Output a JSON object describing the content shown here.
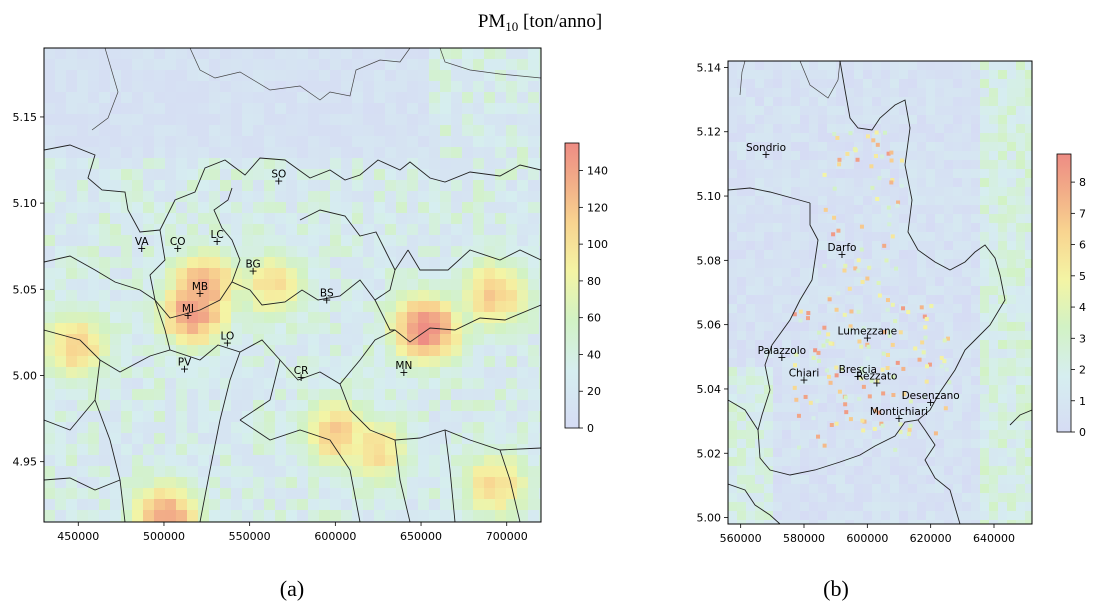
{
  "figure_title": "PM",
  "figure_title_sub": "10",
  "figure_title_unit": " [ton/anno]",
  "chart_data": [
    {
      "type": "heatmap",
      "panel": "a",
      "caption": "(a)",
      "xlim": [
        430000,
        720000
      ],
      "ylim": [
        4.915,
        5.19
      ],
      "x_ticks": [
        450000,
        500000,
        550000,
        600000,
        650000,
        700000
      ],
      "x_tick_labels": [
        "450000",
        "500000",
        "550000",
        "600000",
        "650000",
        "700000"
      ],
      "y_ticks": [
        4.95,
        5.0,
        5.05,
        5.1,
        5.15
      ],
      "y_tick_labels": [
        "4.95",
        "5.00",
        "5.05",
        "5.10",
        "5.15"
      ],
      "colorbar": {
        "min": 0,
        "max": 155,
        "ticks": [
          0,
          20,
          40,
          60,
          80,
          100,
          120,
          140
        ],
        "tick_labels": [
          "0",
          "20",
          "40",
          "60",
          "80",
          "100",
          "120",
          "140"
        ]
      },
      "cities": [
        {
          "label": "SO",
          "x": 567000,
          "y": 5.113
        },
        {
          "label": "VA",
          "x": 487000,
          "y": 5.074
        },
        {
          "label": "CO",
          "x": 508000,
          "y": 5.074
        },
        {
          "label": "LC",
          "x": 531000,
          "y": 5.078
        },
        {
          "label": "BG",
          "x": 552000,
          "y": 5.061
        },
        {
          "label": "MB",
          "x": 521000,
          "y": 5.048
        },
        {
          "label": "BS",
          "x": 595000,
          "y": 5.044
        },
        {
          "label": "MI",
          "x": 514000,
          "y": 5.035
        },
        {
          "label": "LO",
          "x": 537000,
          "y": 5.019
        },
        {
          "label": "PV",
          "x": 512000,
          "y": 5.004
        },
        {
          "label": "CR",
          "x": 580000,
          "y": 4.999
        },
        {
          "label": "MN",
          "x": 640000,
          "y": 5.002
        }
      ],
      "hotspots": [
        {
          "x": 514000,
          "y": 5.04,
          "value": 140
        },
        {
          "x": 520000,
          "y": 5.055,
          "value": 130
        },
        {
          "x": 650000,
          "y": 5.03,
          "value": 150
        },
        {
          "x": 690000,
          "y": 5.05,
          "value": 110
        },
        {
          "x": 498000,
          "y": 4.92,
          "value": 135
        },
        {
          "x": 598000,
          "y": 4.97,
          "value": 110
        },
        {
          "x": 620000,
          "y": 4.96,
          "value": 100
        },
        {
          "x": 690000,
          "y": 4.94,
          "value": 100
        },
        {
          "x": 445000,
          "y": 5.02,
          "value": 105
        },
        {
          "x": 560000,
          "y": 5.055,
          "value": 95
        }
      ]
    },
    {
      "type": "heatmap",
      "panel": "b",
      "caption": "(b)",
      "xlim": [
        556000,
        652000
      ],
      "ylim": [
        4.998,
        5.142
      ],
      "x_ticks": [
        560000,
        580000,
        600000,
        620000,
        640000
      ],
      "x_tick_labels": [
        "560000",
        "580000",
        "600000",
        "620000",
        "640000"
      ],
      "y_ticks": [
        5.0,
        5.02,
        5.04,
        5.06,
        5.08,
        5.1,
        5.12,
        5.14
      ],
      "y_tick_labels": [
        "5.00",
        "5.02",
        "5.04",
        "5.06",
        "5.08",
        "5.10",
        "5.12",
        "5.14"
      ],
      "colorbar": {
        "min": 0,
        "max": 8.9,
        "ticks": [
          0,
          1,
          2,
          3,
          4,
          5,
          6,
          7,
          8
        ],
        "tick_labels": [
          "0",
          "1",
          "2",
          "3",
          "4",
          "5",
          "6",
          "7",
          "8"
        ]
      },
      "cities": [
        {
          "label": "Sondrio",
          "x": 568000,
          "y": 5.113
        },
        {
          "label": "Darfo",
          "x": 592000,
          "y": 5.082
        },
        {
          "label": "Lumezzane",
          "x": 600000,
          "y": 5.056
        },
        {
          "label": "Palazzolo",
          "x": 573000,
          "y": 5.05
        },
        {
          "label": "Chiari",
          "x": 580000,
          "y": 5.043
        },
        {
          "label": "Brescia",
          "x": 597000,
          "y": 5.044
        },
        {
          "label": "Rezzato",
          "x": 603000,
          "y": 5.042
        },
        {
          "label": "Desenzano",
          "x": 620000,
          "y": 5.036
        },
        {
          "label": "Montichiari",
          "x": 610000,
          "y": 5.031
        }
      ]
    }
  ]
}
